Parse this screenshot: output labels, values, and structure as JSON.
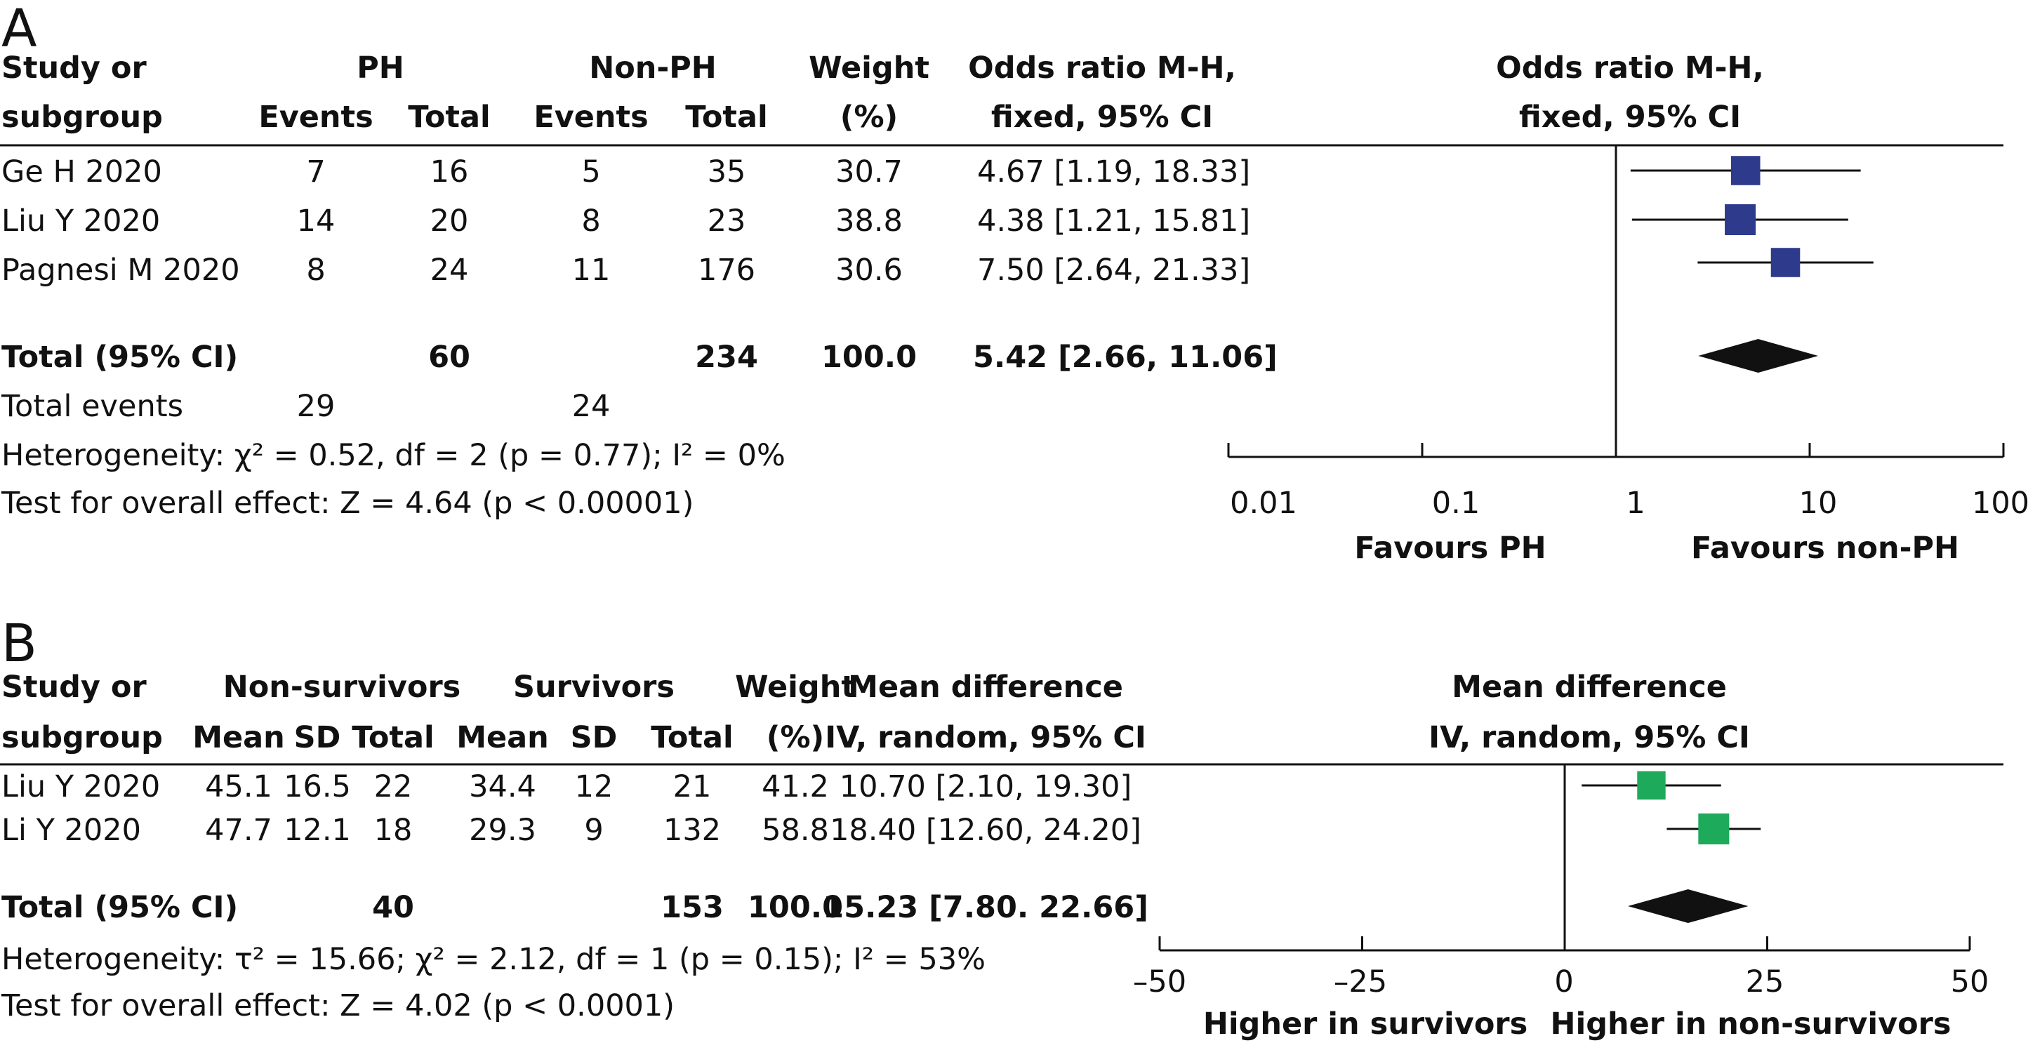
{
  "colors": {
    "panel_a_marker": "#2e3a8c",
    "panel_b_marker": "#1daa5a",
    "ink": "#111111"
  },
  "panels": [
    {
      "letter": "A",
      "headers": {
        "study": [
          "Study or",
          "subgroup"
        ],
        "group1": "PH",
        "group1_cols": [
          "Events",
          "Total"
        ],
        "group2": "Non-PH",
        "group2_cols": [
          "Events",
          "Total"
        ],
        "weight": [
          "Weight",
          "(%)"
        ],
        "effect": [
          "Odds ratio M-H,",
          "fixed, 95% CI"
        ],
        "plot": [
          "Odds ratio M-H,",
          "fixed, 95% CI"
        ]
      },
      "rows": [
        {
          "study": "Ge H 2020",
          "cells": [
            "7",
            "16",
            "5",
            "35"
          ],
          "weight": "30.7",
          "ci": "4.67 [1.19, 18.33]"
        },
        {
          "study": "Liu Y 2020",
          "cells": [
            "14",
            "20",
            "8",
            "23"
          ],
          "weight": "38.8",
          "ci": "4.38 [1.21, 15.81]"
        },
        {
          "study": "Pagnesi M 2020",
          "cells": [
            "8",
            "24",
            "11",
            "176"
          ],
          "weight": "30.6",
          "ci": "7.50 [2.64, 21.33]"
        }
      ],
      "total": {
        "label": "Total (95% CI)",
        "n1": "60",
        "n2": "234",
        "weight": "100.0",
        "ci": "5.42 [2.66, 11.06]"
      },
      "total_events": {
        "label": "Total events",
        "g1": "29",
        "g2": "24"
      },
      "heterogeneity": "Heterogeneity: χ² = 0.52, df = 2 (p = 0.77); I² = 0%",
      "overall": "Test for overall effect: Z = 4.64 (p < 0.00001)",
      "axis": {
        "ticks": [
          "0.01",
          "0.1",
          "1",
          "10",
          "100"
        ],
        "left_label": "Favours PH",
        "right_label": "Favours non-PH"
      }
    },
    {
      "letter": "B",
      "headers": {
        "study": [
          "Study or",
          "subgroup"
        ],
        "group1": "Non-survivors",
        "group1_cols": [
          "Mean",
          "SD",
          "Total"
        ],
        "group2": "Survivors",
        "group2_cols": [
          "Mean",
          "SD",
          "Total"
        ],
        "weight": [
          "Weight",
          "(%)"
        ],
        "effect": [
          "Mean difference",
          "IV, random, 95% CI"
        ],
        "plot": [
          "Mean difference",
          "IV, random, 95% CI"
        ]
      },
      "rows": [
        {
          "study": "Liu Y 2020",
          "cells": [
            "45.1",
            "16.5",
            "22",
            "34.4",
            "12",
            "21"
          ],
          "weight": "41.2",
          "ci": "10.70 [2.10, 19.30]"
        },
        {
          "study": "Li Y 2020",
          "cells": [
            "47.7",
            "12.1",
            "18",
            "29.3",
            "9",
            "132"
          ],
          "weight": "58.8",
          "ci": "18.40 [12.60, 24.20]"
        }
      ],
      "total": {
        "label": "Total (95% CI)",
        "n1": "40",
        "n2": "153",
        "weight": "100.0",
        "ci": "15.23 [7.80. 22.66]"
      },
      "heterogeneity": "Heterogeneity: τ² = 15.66; χ² = 2.12, df = 1 (p = 0.15); I² = 53%",
      "overall": "Test for overall effect: Z = 4.02 (p < 0.0001)",
      "axis": {
        "ticks": [
          "–50",
          "–25",
          "0",
          "25",
          "50"
        ],
        "left_label": "Higher in survivors",
        "right_label": "Higher in non-survivors"
      }
    }
  ],
  "chart_data": [
    {
      "type": "forest",
      "scale": "log",
      "xlim": [
        0.01,
        100
      ],
      "null_value": 1,
      "studies": [
        {
          "name": "Ge H 2020",
          "estimate": 4.67,
          "lower": 1.19,
          "upper": 18.33,
          "weight": 30.7
        },
        {
          "name": "Liu Y 2020",
          "estimate": 4.38,
          "lower": 1.21,
          "upper": 15.81,
          "weight": 38.8
        },
        {
          "name": "Pagnesi M 2020",
          "estimate": 7.5,
          "lower": 2.64,
          "upper": 21.33,
          "weight": 30.6
        }
      ],
      "pooled": {
        "estimate": 5.42,
        "lower": 2.66,
        "upper": 11.06
      }
    },
    {
      "type": "forest",
      "scale": "linear",
      "xlim": [
        -50,
        50
      ],
      "null_value": 0,
      "studies": [
        {
          "name": "Liu Y 2020",
          "estimate": 10.7,
          "lower": 2.1,
          "upper": 19.3,
          "weight": 41.2
        },
        {
          "name": "Li Y 2020",
          "estimate": 18.4,
          "lower": 12.6,
          "upper": 24.2,
          "weight": 58.8
        }
      ],
      "pooled": {
        "estimate": 15.23,
        "lower": 7.8,
        "upper": 22.66
      }
    }
  ]
}
